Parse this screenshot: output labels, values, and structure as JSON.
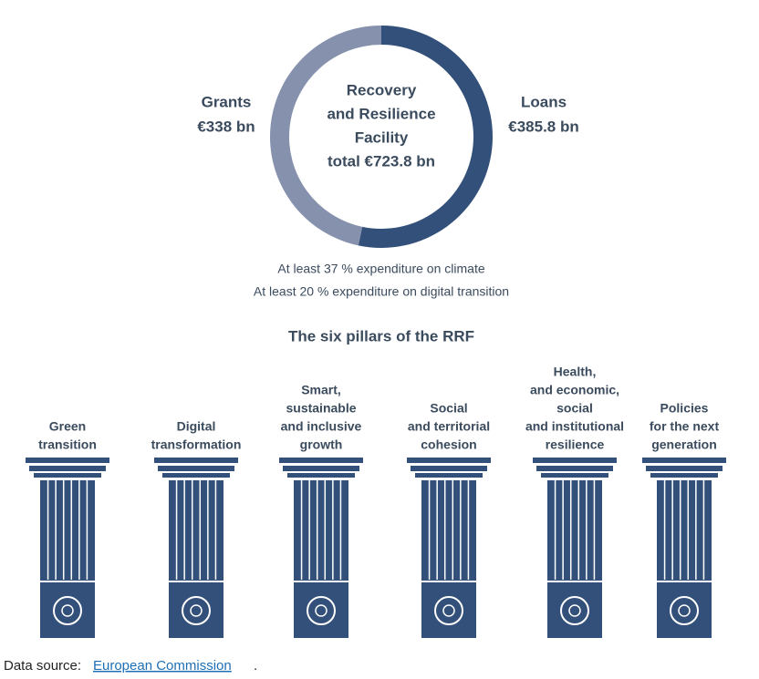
{
  "chart_data": {
    "type": "donut",
    "categories": [
      "Grants",
      "Loans"
    ],
    "values": [
      338,
      385.8
    ],
    "value_labels": [
      "€338 bn",
      "€385.8 bn"
    ],
    "colors": [
      "#8591ad",
      "#33507a"
    ],
    "center_label": [
      "Recovery",
      "and Resilience",
      "Facility",
      "total €723.8 bn"
    ]
  },
  "notes": [
    "At least 37 % expenditure on climate",
    "At least 20 % expenditure on digital transition"
  ],
  "pillars_title": "The six pillars of the RRF",
  "pillars": [
    [
      "Green",
      "transition"
    ],
    [
      "Digital",
      "transformation"
    ],
    [
      "Smart,",
      "sustainable",
      "and inclusive",
      "growth"
    ],
    [
      "Social",
      "and territorial",
      "cohesion"
    ],
    [
      "Health,",
      "and economic,",
      "social",
      "and institutional",
      "resilience"
    ],
    [
      "Policies",
      "for the next",
      "generation"
    ]
  ],
  "source": {
    "label": "Data source:",
    "link": "European Commission",
    "end": "."
  }
}
